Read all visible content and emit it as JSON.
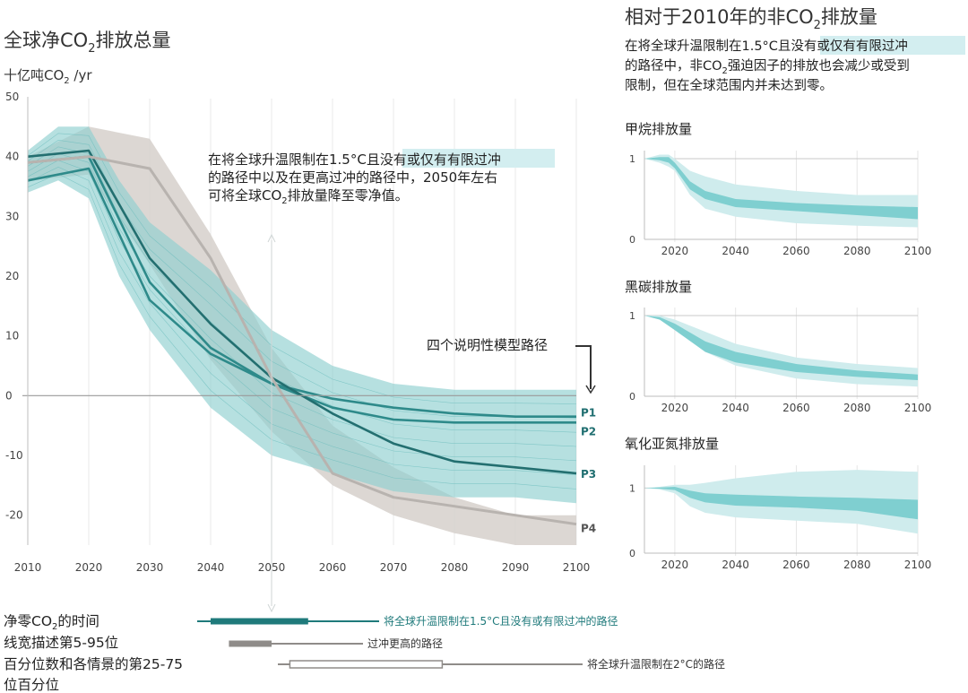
{
  "chart_data": [
    {
      "id": "main",
      "type": "line",
      "title_prefix": "全球净CO",
      "title_sub": "2",
      "title_suffix": "排放总量",
      "ylabel_prefix": "十亿吨CO",
      "ylabel_sub": "2",
      "ylabel_suffix": " /yr",
      "xlim": [
        2010,
        2100
      ],
      "ylim": [
        -25,
        50
      ],
      "x_ticks": [
        "2010",
        "2020",
        "2030",
        "2040",
        "2050",
        "2060",
        "2070",
        "2080",
        "2090",
        "2100"
      ],
      "y_ticks": [
        "50",
        "40",
        "30",
        "20",
        "10",
        "0",
        "-10",
        "-20"
      ],
      "x_tick_values": [
        2010,
        2020,
        2030,
        2040,
        2050,
        2060,
        2070,
        2080,
        2090,
        2100
      ],
      "y_tick_values": [
        50,
        40,
        30,
        20,
        10,
        0,
        -10,
        -20
      ],
      "bands": [
        {
          "name": "overshoot-range",
          "color": "#d6d0cb",
          "x": [
            2010,
            2020,
            2030,
            2040,
            2050,
            2060,
            2070,
            2080,
            2090,
            2100
          ],
          "upper": [
            40,
            45,
            43,
            27,
            8,
            -5,
            -12,
            -17,
            -20,
            -20
          ],
          "lower": [
            36,
            37,
            22,
            6,
            -6,
            -15,
            -20,
            -23,
            -25,
            -25
          ]
        },
        {
          "name": "1.5c-range",
          "color": "#8fcfcf",
          "x": [
            2010,
            2015,
            2020,
            2025,
            2030,
            2040,
            2050,
            2060,
            2070,
            2080,
            2090,
            2100
          ],
          "upper": [
            41,
            45,
            45,
            36,
            29,
            21,
            11,
            5,
            2,
            1,
            1,
            1
          ],
          "lower": [
            34,
            36,
            33,
            20,
            11,
            -2,
            -10,
            -13,
            -16,
            -17,
            -17,
            -18
          ]
        }
      ],
      "series": [
        {
          "name": "P1",
          "color": "#2e8a8a",
          "x": [
            2010,
            2020,
            2030,
            2040,
            2050,
            2060,
            2070,
            2080,
            2090,
            2100
          ],
          "values": [
            36,
            38,
            16,
            7,
            2,
            -0.5,
            -2,
            -3,
            -3.5,
            -3.5
          ]
        },
        {
          "name": "P2",
          "color": "#2e8a8a",
          "x": [
            2010,
            2020,
            2030,
            2040,
            2050,
            2060,
            2070,
            2080,
            2090,
            2100
          ],
          "values": [
            39,
            40,
            19,
            8,
            2,
            -2,
            -4,
            -4.5,
            -4.5,
            -4.5
          ]
        },
        {
          "name": "P3",
          "color": "#236f70",
          "x": [
            2010,
            2020,
            2030,
            2040,
            2050,
            2060,
            2070,
            2080,
            2090,
            2100
          ],
          "values": [
            40,
            41,
            23,
            12,
            3,
            -3,
            -8,
            -11,
            -12,
            -13
          ]
        },
        {
          "name": "P4",
          "color": "#b8b3af",
          "x": [
            2010,
            2020,
            2030,
            2040,
            2050,
            2060,
            2070,
            2080,
            2090,
            2100
          ],
          "values": [
            39,
            40,
            38,
            23,
            3,
            -13,
            -17,
            -18.5,
            -20,
            -21.5
          ]
        }
      ],
      "annotation": {
        "line1_plain": "在将全球升温限制在1.5°C且",
        "line1_hl": "没有或仅有有限过冲",
        "line2": "的路径中以及在更高过冲的路径中，2050年左右",
        "line3_prefix": "可将全球CO",
        "line3_sub": "2",
        "line3_suffix": "排放量降至零净值。"
      },
      "pathways_label": "四个说明性模型路径"
    },
    {
      "id": "methane",
      "type": "area",
      "title": "甲烷排放量",
      "xlim": [
        2010,
        2100
      ],
      "ylim": [
        0,
        1.1
      ],
      "x_ticks": [
        "2020",
        "2040",
        "2060",
        "2080",
        "2100"
      ],
      "y_ticks": [
        "1",
        "0"
      ],
      "x": [
        2010,
        2015,
        2018,
        2020,
        2025,
        2030,
        2040,
        2060,
        2080,
        2100
      ],
      "outer_upper": [
        1,
        1.05,
        1.05,
        1.0,
        0.85,
        0.78,
        0.68,
        0.6,
        0.55,
        0.55
      ],
      "outer_lower": [
        1,
        0.95,
        0.9,
        0.85,
        0.55,
        0.38,
        0.28,
        0.2,
        0.17,
        0.15
      ],
      "inner_upper": [
        1,
        1.02,
        1.02,
        0.95,
        0.72,
        0.6,
        0.5,
        0.45,
        0.42,
        0.4
      ],
      "inner_lower": [
        1,
        0.98,
        0.95,
        0.88,
        0.62,
        0.5,
        0.4,
        0.35,
        0.3,
        0.25
      ]
    },
    {
      "id": "black-carbon",
      "type": "area",
      "title": "黑碳排放量",
      "xlim": [
        2010,
        2100
      ],
      "ylim": [
        0,
        1.1
      ],
      "x_ticks": [
        "2020",
        "2040",
        "2060",
        "2080",
        "2100"
      ],
      "y_ticks": [
        "1",
        "0"
      ],
      "x": [
        2010,
        2015,
        2020,
        2030,
        2040,
        2060,
        2080,
        2100
      ],
      "outer_upper": [
        1,
        1,
        0.95,
        0.8,
        0.65,
        0.48,
        0.4,
        0.35
      ],
      "outer_lower": [
        1,
        0.95,
        0.85,
        0.55,
        0.38,
        0.22,
        0.15,
        0.12
      ],
      "inner_upper": [
        1,
        0.98,
        0.9,
        0.68,
        0.55,
        0.4,
        0.32,
        0.27
      ],
      "inner_lower": [
        1,
        0.95,
        0.82,
        0.55,
        0.42,
        0.3,
        0.24,
        0.2
      ]
    },
    {
      "id": "nitrous-oxide",
      "type": "area",
      "title": "氧化亚氮排放量",
      "xlim": [
        2010,
        2100
      ],
      "ylim": [
        0,
        1.35
      ],
      "x_ticks": [
        "2020",
        "2040",
        "2060",
        "2080",
        "2100"
      ],
      "y_ticks": [
        "1",
        "0"
      ],
      "x": [
        2010,
        2015,
        2020,
        2025,
        2030,
        2040,
        2060,
        2080,
        2100
      ],
      "outer_upper": [
        1,
        1.02,
        1.05,
        1.05,
        1.08,
        1.15,
        1.25,
        1.28,
        1.25
      ],
      "outer_lower": [
        1,
        0.98,
        0.92,
        0.72,
        0.62,
        0.55,
        0.5,
        0.45,
        0.3
      ],
      "inner_upper": [
        1,
        1.01,
        1.02,
        0.96,
        0.92,
        0.9,
        0.87,
        0.85,
        0.82
      ],
      "inner_lower": [
        1,
        0.99,
        0.97,
        0.85,
        0.78,
        0.73,
        0.7,
        0.65,
        0.52
      ]
    }
  ],
  "right_panel": {
    "title_prefix": "相对于2010年的非CO",
    "title_sub": "2",
    "title_suffix": "排放量",
    "desc_line1_plain": "在将全球升温限制在1.5°C且",
    "desc_line1_hl": "没有或仅有有限过冲",
    "desc_line2_prefix": "的路径中，非CO",
    "desc_line2_sub": "2",
    "desc_line2_suffix": "强迫因子的排放也会减少或受到",
    "desc_line3": "限制，但在全球范围内并未达到零。"
  },
  "legend": {
    "line1_prefix": "净零CO",
    "line1_sub": "2",
    "line1_suffix": "的时间",
    "line2": "线宽描述第5-95位",
    "line3": "百分位数和各情景的第25-75",
    "line4": "位百分位",
    "items": [
      {
        "label": "将全球升温限制在1.5°C且没有或有限过冲的路径",
        "color": "#1f7a7b",
        "range5_95": [
          2040,
          2056
        ],
        "range25_75": [
          2046,
          2052
        ]
      },
      {
        "label": "过冲更高的路径",
        "color": "#8f8c89",
        "range5_95": [
          2043,
          2050
        ],
        "range25_75": [
          2044,
          2050
        ]
      },
      {
        "label": "将全球升温限制在2°C的路径",
        "color": "#8f8c89",
        "range5_95": [
          2053,
          2078
        ],
        "range25_75": [
          2065,
          2076
        ]
      }
    ]
  }
}
